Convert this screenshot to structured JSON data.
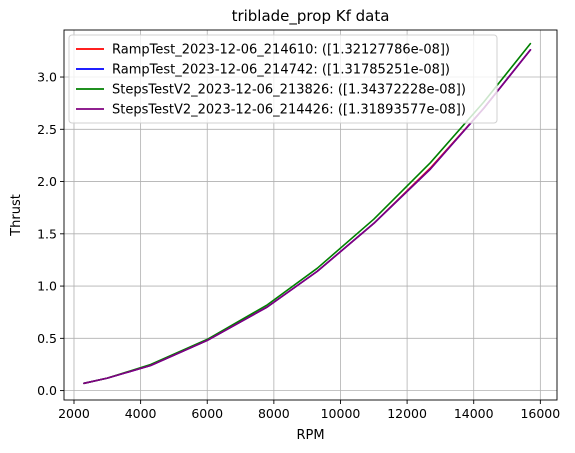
{
  "chart_data": {
    "type": "line",
    "title": "triblade_prop Kf data",
    "xlabel": "RPM",
    "ylabel": "Thrust",
    "xlim": [
      1700,
      16500
    ],
    "ylim": [
      -0.09,
      3.45
    ],
    "xticks": [
      2000,
      4000,
      6000,
      8000,
      10000,
      12000,
      14000,
      16000
    ],
    "yticks": [
      0.0,
      0.5,
      1.0,
      1.5,
      2.0,
      2.5,
      3.0
    ],
    "grid": true,
    "legend_position": "top-left",
    "series": [
      {
        "name": "RampTest_2023-12-06_214610: ([1.32127786e-08])",
        "color": "#ff0000",
        "x": [
          2300,
          3000,
          4300,
          6000,
          7800,
          9300,
          11000,
          12700,
          14300,
          15700
        ],
        "y": [
          0.07,
          0.12,
          0.24,
          0.48,
          0.8,
          1.14,
          1.6,
          2.13,
          2.7,
          3.26
        ]
      },
      {
        "name": "RampTest_2023-12-06_214742: ([1.31785251e-08])",
        "color": "#0000ff",
        "x": [
          2300,
          3000,
          4300,
          6000,
          7800,
          9300,
          11000,
          12700,
          14300,
          15700
        ],
        "y": [
          0.07,
          0.12,
          0.24,
          0.48,
          0.8,
          1.14,
          1.6,
          2.12,
          2.7,
          3.26
        ]
      },
      {
        "name": "StepsTestV2_2023-12-06_213826: ([1.34372228e-08])",
        "color": "#008000",
        "x": [
          2300,
          3000,
          4300,
          6000,
          7800,
          9300,
          11000,
          12700,
          14300,
          15700
        ],
        "y": [
          0.07,
          0.12,
          0.25,
          0.49,
          0.82,
          1.17,
          1.64,
          2.18,
          2.76,
          3.32
        ]
      },
      {
        "name": "StepsTestV2_2023-12-06_214426: ([1.31893577e-08])",
        "color": "#800080",
        "x": [
          2300,
          3000,
          4300,
          6000,
          7800,
          9300,
          11000,
          12700,
          14300,
          15700
        ],
        "y": [
          0.07,
          0.12,
          0.24,
          0.48,
          0.8,
          1.14,
          1.6,
          2.12,
          2.7,
          3.26
        ]
      }
    ]
  }
}
